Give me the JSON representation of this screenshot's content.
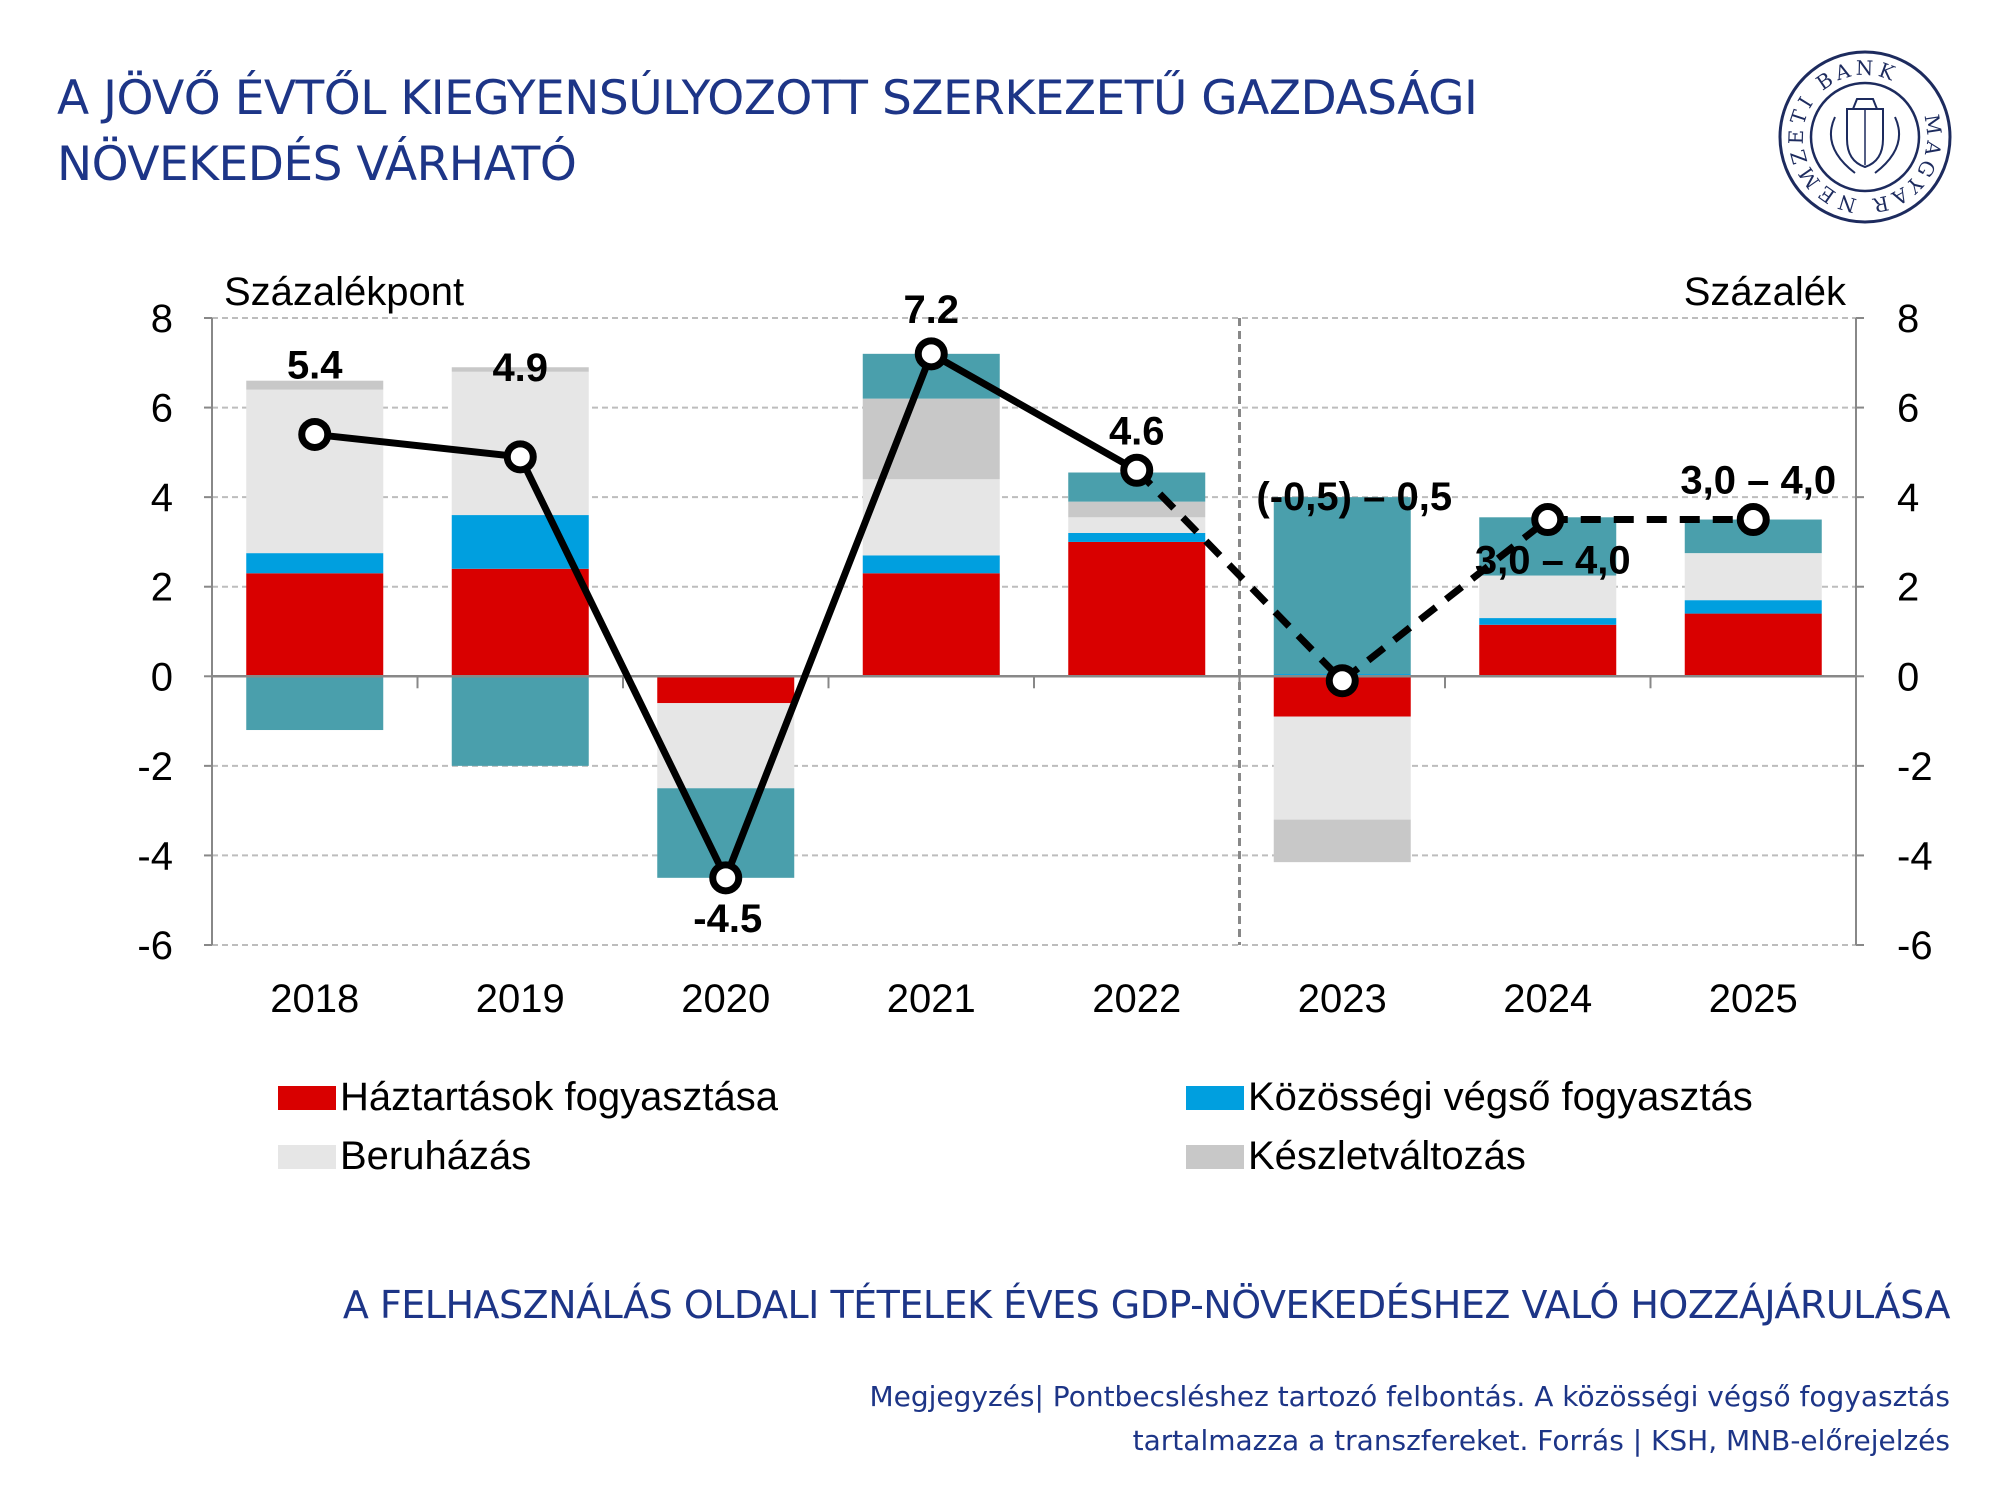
{
  "title_lines": [
    "A JÖVŐ ÉVTŐL KIEGYENSÚLYOZOTT SZERKEZETŰ GAZDASÁGI",
    "NÖVEKEDÉS VÁRHATÓ"
  ],
  "logo": {
    "text": "MAGYAR NEMZETI BANK"
  },
  "subtitle": "A FELHASZNÁLÁS OLDALI TÉTELEK ÉVES GDP-NÖVEKEDÉSHEZ VALÓ HOZZÁJÁRULÁSA",
  "note_lines": [
    "Megjegyzés| Pontbecsléshez tartozó felbontás. A közösségi végső fogyasztás",
    "tartalmazza a transzfereket. Forrás | KSH, MNB-előrejelzés"
  ],
  "chart_data": {
    "type": "bar",
    "stacked": true,
    "ylabel_left": "Százalékpont",
    "ylabel_right": "Százalék",
    "ylim": [
      -6,
      8
    ],
    "yticks": [
      8,
      6,
      4,
      2,
      0,
      -2,
      -4,
      -6
    ],
    "grid": true,
    "legend_position": "bottom",
    "categories": [
      "2018",
      "2019",
      "2020",
      "2021",
      "2022",
      "2023",
      "2024",
      "2025"
    ],
    "forecast_from": "2023",
    "series": [
      {
        "name": "Háztartások fogyasztása",
        "color": "#d90000",
        "values": [
          2.3,
          2.4,
          -0.6,
          2.3,
          3.0,
          -0.9,
          1.15,
          1.4
        ]
      },
      {
        "name": "Közösségi végső fogyasztás",
        "color": "#009fdf",
        "values": [
          0.45,
          1.2,
          0,
          0.4,
          0.2,
          0.05,
          0.15,
          0.3
        ]
      },
      {
        "name": "Beruházás",
        "color": "#e6e6e6",
        "values": [
          3.65,
          3.2,
          -1.9,
          1.7,
          0.35,
          -2.3,
          0.95,
          1.05
        ]
      },
      {
        "name": "Készletváltozás",
        "color": "#c8c8c8",
        "values": [
          0.2,
          0.1,
          0,
          1.8,
          0.35,
          -0.95,
          0,
          0
        ]
      },
      {
        "name": "",
        "color": "#4a9fac",
        "values": [
          -1.2,
          -2.0,
          -2.0,
          1.0,
          0.65,
          3.95,
          1.3,
          0.75
        ]
      }
    ],
    "line": {
      "values": [
        5.4,
        4.9,
        -4.5,
        7.2,
        4.6,
        -0.1,
        3.5,
        3.5
      ],
      "dashed_from": "2022"
    },
    "data_labels": [
      "5.4",
      "4.9",
      "-4.5",
      "7.2",
      "4.6",
      "(-0,5) – 0,5",
      "3,0 – 4,0",
      "3,0 – 4,0"
    ]
  }
}
